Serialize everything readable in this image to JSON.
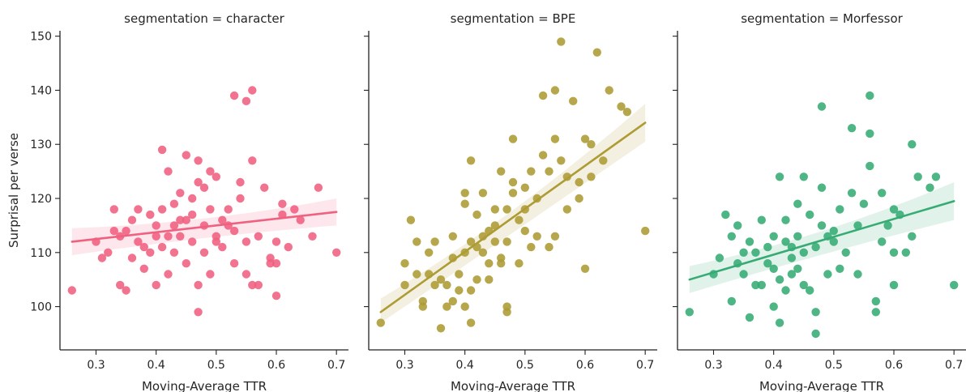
{
  "chart_data": {
    "type": "scatter",
    "xlabel": "Moving-Average TTR",
    "ylabel": "Surprisal per verse",
    "xlim": [
      0.24,
      0.72
    ],
    "ylim": [
      92,
      151
    ],
    "xticks": [
      0.3,
      0.4,
      0.5,
      0.6,
      0.7
    ],
    "xtick_labels": [
      "0.3",
      "0.4",
      "0.5",
      "0.6",
      "0.7"
    ],
    "yticks": [
      100,
      110,
      120,
      130,
      140,
      150
    ],
    "ytick_labels": [
      "100",
      "110",
      "120",
      "130",
      "140",
      "150"
    ],
    "shared_y": true,
    "grid": false,
    "panels": [
      {
        "title": "segmentation = character",
        "color": "#f0607f",
        "regression": {
          "x": [
            0.26,
            0.7
          ],
          "y": [
            112.0,
            117.5
          ],
          "ci_low_ends": [
            109.5,
            115.0
          ],
          "ci_mid": 113.8,
          "ci_high_ends": [
            114.5,
            120.0
          ]
        },
        "points": [
          [
            0.26,
            103
          ],
          [
            0.3,
            112
          ],
          [
            0.31,
            109
          ],
          [
            0.32,
            110
          ],
          [
            0.33,
            114
          ],
          [
            0.33,
            118
          ],
          [
            0.34,
            113
          ],
          [
            0.34,
            104
          ],
          [
            0.35,
            114
          ],
          [
            0.35,
            103
          ],
          [
            0.36,
            109
          ],
          [
            0.36,
            116
          ],
          [
            0.37,
            118
          ],
          [
            0.37,
            112
          ],
          [
            0.38,
            111
          ],
          [
            0.38,
            107
          ],
          [
            0.39,
            110
          ],
          [
            0.39,
            117
          ],
          [
            0.4,
            104
          ],
          [
            0.4,
            113
          ],
          [
            0.4,
            115
          ],
          [
            0.41,
            111
          ],
          [
            0.41,
            129
          ],
          [
            0.41,
            118
          ],
          [
            0.42,
            113
          ],
          [
            0.42,
            106
          ],
          [
            0.42,
            125
          ],
          [
            0.43,
            115
          ],
          [
            0.43,
            119
          ],
          [
            0.43,
            110
          ],
          [
            0.44,
            113
          ],
          [
            0.44,
            116
          ],
          [
            0.44,
            121
          ],
          [
            0.45,
            116
          ],
          [
            0.45,
            108
          ],
          [
            0.45,
            128
          ],
          [
            0.46,
            117
          ],
          [
            0.46,
            112
          ],
          [
            0.46,
            120
          ],
          [
            0.47,
            104
          ],
          [
            0.47,
            99
          ],
          [
            0.47,
            123
          ],
          [
            0.47,
            127
          ],
          [
            0.48,
            115
          ],
          [
            0.48,
            122
          ],
          [
            0.48,
            110
          ],
          [
            0.49,
            125
          ],
          [
            0.49,
            118
          ],
          [
            0.49,
            106
          ],
          [
            0.5,
            113
          ],
          [
            0.5,
            124
          ],
          [
            0.5,
            112
          ],
          [
            0.51,
            116
          ],
          [
            0.51,
            111
          ],
          [
            0.52,
            118
          ],
          [
            0.52,
            115
          ],
          [
            0.53,
            114
          ],
          [
            0.53,
            108
          ],
          [
            0.53,
            139
          ],
          [
            0.54,
            123
          ],
          [
            0.54,
            120
          ],
          [
            0.55,
            106
          ],
          [
            0.55,
            112
          ],
          [
            0.55,
            138
          ],
          [
            0.56,
            140
          ],
          [
            0.56,
            127
          ],
          [
            0.56,
            104
          ],
          [
            0.57,
            113
          ],
          [
            0.57,
            104
          ],
          [
            0.58,
            122
          ],
          [
            0.59,
            109
          ],
          [
            0.59,
            108
          ],
          [
            0.6,
            102
          ],
          [
            0.6,
            112
          ],
          [
            0.6,
            108
          ],
          [
            0.61,
            117
          ],
          [
            0.61,
            119
          ],
          [
            0.62,
            111
          ],
          [
            0.63,
            118
          ],
          [
            0.64,
            116
          ],
          [
            0.66,
            113
          ],
          [
            0.67,
            122
          ],
          [
            0.7,
            110
          ]
        ]
      },
      {
        "title": "segmentation = BPE",
        "color": "#ad9b33",
        "regression": {
          "x": [
            0.26,
            0.7
          ],
          "y": [
            99.0,
            134.0
          ],
          "ci_low_ends": [
            97.0,
            130.5
          ],
          "ci_mid": 113.5,
          "ci_high_ends": [
            101.5,
            137.5
          ]
        },
        "points": [
          [
            0.26,
            97
          ],
          [
            0.3,
            104
          ],
          [
            0.3,
            108
          ],
          [
            0.31,
            116
          ],
          [
            0.32,
            106
          ],
          [
            0.32,
            112
          ],
          [
            0.33,
            101
          ],
          [
            0.33,
            100
          ],
          [
            0.34,
            106
          ],
          [
            0.34,
            110
          ],
          [
            0.35,
            112
          ],
          [
            0.35,
            104
          ],
          [
            0.36,
            96
          ],
          [
            0.36,
            105
          ],
          [
            0.37,
            100
          ],
          [
            0.37,
            104
          ],
          [
            0.38,
            101
          ],
          [
            0.38,
            113
          ],
          [
            0.38,
            109
          ],
          [
            0.39,
            103
          ],
          [
            0.39,
            106
          ],
          [
            0.4,
            100
          ],
          [
            0.4,
            110
          ],
          [
            0.4,
            119
          ],
          [
            0.4,
            121
          ],
          [
            0.41,
            127
          ],
          [
            0.41,
            97
          ],
          [
            0.41,
            103
          ],
          [
            0.41,
            112
          ],
          [
            0.42,
            105
          ],
          [
            0.42,
            111
          ],
          [
            0.42,
            117
          ],
          [
            0.43,
            113
          ],
          [
            0.43,
            110
          ],
          [
            0.43,
            121
          ],
          [
            0.44,
            108
          ],
          [
            0.44,
            114
          ],
          [
            0.44,
            105
          ],
          [
            0.45,
            115
          ],
          [
            0.45,
            112
          ],
          [
            0.45,
            118
          ],
          [
            0.46,
            109
          ],
          [
            0.46,
            108
          ],
          [
            0.46,
            125
          ],
          [
            0.47,
            112
          ],
          [
            0.47,
            100
          ],
          [
            0.47,
            99
          ],
          [
            0.47,
            118
          ],
          [
            0.48,
            123
          ],
          [
            0.48,
            131
          ],
          [
            0.48,
            121
          ],
          [
            0.49,
            116
          ],
          [
            0.49,
            108
          ],
          [
            0.5,
            118
          ],
          [
            0.5,
            114
          ],
          [
            0.5,
            122
          ],
          [
            0.51,
            125
          ],
          [
            0.51,
            111
          ],
          [
            0.52,
            113
          ],
          [
            0.52,
            120
          ],
          [
            0.53,
            139
          ],
          [
            0.53,
            128
          ],
          [
            0.54,
            111
          ],
          [
            0.54,
            125
          ],
          [
            0.55,
            131
          ],
          [
            0.55,
            140
          ],
          [
            0.55,
            113
          ],
          [
            0.56,
            149
          ],
          [
            0.56,
            127
          ],
          [
            0.57,
            124
          ],
          [
            0.57,
            118
          ],
          [
            0.58,
            138
          ],
          [
            0.59,
            120
          ],
          [
            0.59,
            123
          ],
          [
            0.6,
            107
          ],
          [
            0.6,
            131
          ],
          [
            0.61,
            130
          ],
          [
            0.61,
            124
          ],
          [
            0.62,
            147
          ],
          [
            0.63,
            127
          ],
          [
            0.64,
            140
          ],
          [
            0.66,
            137
          ],
          [
            0.67,
            136
          ],
          [
            0.7,
            114
          ]
        ]
      },
      {
        "title": "segmentation = Morfessor",
        "color": "#36ab74",
        "regression": {
          "x": [
            0.26,
            0.7
          ],
          "y": [
            105.0,
            119.5
          ],
          "ci_low_ends": [
            102.5,
            116.0
          ],
          "ci_mid": 110.5,
          "ci_high_ends": [
            107.5,
            123.0
          ]
        },
        "points": [
          [
            0.26,
            99
          ],
          [
            0.3,
            106
          ],
          [
            0.31,
            109
          ],
          [
            0.32,
            117
          ],
          [
            0.33,
            113
          ],
          [
            0.33,
            101
          ],
          [
            0.34,
            115
          ],
          [
            0.34,
            108
          ],
          [
            0.35,
            110
          ],
          [
            0.35,
            106
          ],
          [
            0.36,
            112
          ],
          [
            0.36,
            98
          ],
          [
            0.37,
            104
          ],
          [
            0.37,
            110
          ],
          [
            0.38,
            116
          ],
          [
            0.38,
            104
          ],
          [
            0.39,
            111
          ],
          [
            0.39,
            108
          ],
          [
            0.4,
            100
          ],
          [
            0.4,
            113
          ],
          [
            0.4,
            107
          ],
          [
            0.41,
            124
          ],
          [
            0.41,
            105
          ],
          [
            0.41,
            97
          ],
          [
            0.42,
            112
          ],
          [
            0.42,
            103
          ],
          [
            0.42,
            116
          ],
          [
            0.43,
            106
          ],
          [
            0.43,
            109
          ],
          [
            0.43,
            111
          ],
          [
            0.44,
            107
          ],
          [
            0.44,
            113
          ],
          [
            0.44,
            119
          ],
          [
            0.45,
            124
          ],
          [
            0.45,
            104
          ],
          [
            0.45,
            110
          ],
          [
            0.46,
            117
          ],
          [
            0.46,
            103
          ],
          [
            0.47,
            95
          ],
          [
            0.47,
            99
          ],
          [
            0.47,
            111
          ],
          [
            0.48,
            122
          ],
          [
            0.48,
            137
          ],
          [
            0.48,
            115
          ],
          [
            0.49,
            113
          ],
          [
            0.49,
            106
          ],
          [
            0.5,
            114
          ],
          [
            0.5,
            112
          ],
          [
            0.51,
            118
          ],
          [
            0.51,
            107
          ],
          [
            0.52,
            110
          ],
          [
            0.53,
            133
          ],
          [
            0.53,
            121
          ],
          [
            0.54,
            106
          ],
          [
            0.54,
            115
          ],
          [
            0.55,
            119
          ],
          [
            0.56,
            126
          ],
          [
            0.56,
            132
          ],
          [
            0.56,
            139
          ],
          [
            0.57,
            101
          ],
          [
            0.57,
            99
          ],
          [
            0.58,
            112
          ],
          [
            0.58,
            121
          ],
          [
            0.59,
            115
          ],
          [
            0.6,
            110
          ],
          [
            0.6,
            104
          ],
          [
            0.6,
            118
          ],
          [
            0.61,
            117
          ],
          [
            0.62,
            110
          ],
          [
            0.63,
            113
          ],
          [
            0.63,
            130
          ],
          [
            0.64,
            124
          ],
          [
            0.66,
            122
          ],
          [
            0.67,
            124
          ],
          [
            0.7,
            104
          ]
        ]
      }
    ]
  }
}
